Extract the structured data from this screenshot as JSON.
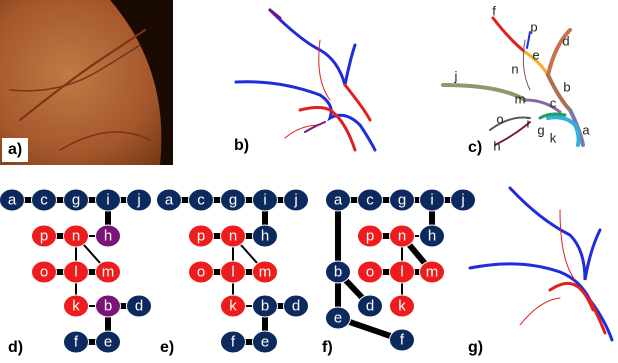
{
  "panels": [
    {
      "label": "a)"
    },
    {
      "label": "b)"
    },
    {
      "label": "c)",
      "segment_labels": [
        "f",
        "p",
        "d",
        "e",
        "n",
        "j",
        "b",
        "m",
        "c",
        "o",
        "i",
        "g",
        "a",
        "k",
        "h"
      ]
    },
    {
      "label": "d)",
      "nodes": [
        {
          "label": "a",
          "color": "#0d2a5e"
        },
        {
          "label": "c",
          "color": "#0d2a5e"
        },
        {
          "label": "g",
          "color": "#0d2a5e"
        },
        {
          "label": "i",
          "color": "#0d2a5e"
        },
        {
          "label": "j",
          "color": "#0d2a5e"
        },
        {
          "label": "p",
          "color": "#ee1c1c"
        },
        {
          "label": "n",
          "color": "#ee1c1c"
        },
        {
          "label": "h",
          "color": "#7a1478"
        },
        {
          "label": "o",
          "color": "#ee1c1c"
        },
        {
          "label": "l",
          "color": "#ee1c1c"
        },
        {
          "label": "m",
          "color": "#ee1c1c"
        },
        {
          "label": "k",
          "color": "#ee1c1c"
        },
        {
          "label": "b",
          "color": "#7a1478"
        },
        {
          "label": "d",
          "color": "#0d2a5e"
        },
        {
          "label": "f",
          "color": "#0d2a5e"
        },
        {
          "label": "e",
          "color": "#0d2a5e"
        }
      ],
      "edges": [
        [
          0,
          1,
          6
        ],
        [
          1,
          2,
          6
        ],
        [
          2,
          3,
          6
        ],
        [
          3,
          4,
          6
        ],
        [
          3,
          7,
          6
        ],
        [
          5,
          6,
          6
        ],
        [
          6,
          7,
          2
        ],
        [
          6,
          9,
          2
        ],
        [
          6,
          10,
          2
        ],
        [
          8,
          9,
          6
        ],
        [
          9,
          10,
          6
        ],
        [
          9,
          11,
          2
        ],
        [
          11,
          12,
          2
        ],
        [
          12,
          13,
          6
        ],
        [
          12,
          15,
          6
        ],
        [
          14,
          15,
          6
        ]
      ]
    },
    {
      "label": "e)",
      "nodes": [
        {
          "label": "a",
          "color": "#0d2a5e"
        },
        {
          "label": "c",
          "color": "#0d2a5e"
        },
        {
          "label": "g",
          "color": "#0d2a5e"
        },
        {
          "label": "i",
          "color": "#0d2a5e"
        },
        {
          "label": "j",
          "color": "#0d2a5e"
        },
        {
          "label": "p",
          "color": "#ee1c1c"
        },
        {
          "label": "n",
          "color": "#ee1c1c"
        },
        {
          "label": "h",
          "color": "#0d2a5e"
        },
        {
          "label": "o",
          "color": "#ee1c1c"
        },
        {
          "label": "l",
          "color": "#ee1c1c"
        },
        {
          "label": "m",
          "color": "#ee1c1c"
        },
        {
          "label": "k",
          "color": "#ee1c1c"
        },
        {
          "label": "b",
          "color": "#0d2a5e"
        },
        {
          "label": "d",
          "color": "#0d2a5e"
        },
        {
          "label": "f",
          "color": "#0d2a5e"
        },
        {
          "label": "e",
          "color": "#0d2a5e"
        }
      ],
      "edges": [
        [
          0,
          1,
          6
        ],
        [
          1,
          2,
          6
        ],
        [
          2,
          3,
          6
        ],
        [
          3,
          4,
          6
        ],
        [
          3,
          7,
          6
        ],
        [
          5,
          6,
          6
        ],
        [
          6,
          7,
          6
        ],
        [
          6,
          9,
          2
        ],
        [
          6,
          10,
          2
        ],
        [
          8,
          9,
          6
        ],
        [
          9,
          10,
          6
        ],
        [
          9,
          11,
          2
        ],
        [
          11,
          12,
          2
        ],
        [
          12,
          13,
          6
        ],
        [
          12,
          15,
          6
        ],
        [
          14,
          15,
          6
        ]
      ]
    },
    {
      "label": "f)",
      "nodes": [
        {
          "label": "a",
          "color": "#0d2a5e"
        },
        {
          "label": "c",
          "color": "#0d2a5e"
        },
        {
          "label": "g",
          "color": "#0d2a5e"
        },
        {
          "label": "i",
          "color": "#0d2a5e"
        },
        {
          "label": "j",
          "color": "#0d2a5e"
        },
        {
          "label": "p",
          "color": "#ee1c1c"
        },
        {
          "label": "n",
          "color": "#ee1c1c"
        },
        {
          "label": "h",
          "color": "#0d2a5e"
        },
        {
          "label": "o",
          "color": "#ee1c1c"
        },
        {
          "label": "l",
          "color": "#ee1c1c"
        },
        {
          "label": "m",
          "color": "#ee1c1c"
        },
        {
          "label": "k",
          "color": "#ee1c1c"
        },
        {
          "label": "b",
          "color": "#0d2a5e"
        },
        {
          "label": "d",
          "color": "#0d2a5e"
        },
        {
          "label": "f",
          "color": "#0d2a5e"
        },
        {
          "label": "e",
          "color": "#0d2a5e"
        }
      ],
      "edges": [
        [
          0,
          1,
          6
        ],
        [
          1,
          2,
          6
        ],
        [
          2,
          3,
          6
        ],
        [
          3,
          4,
          6
        ],
        [
          3,
          7,
          6
        ],
        [
          5,
          6,
          6
        ],
        [
          6,
          7,
          2
        ],
        [
          6,
          9,
          2
        ],
        [
          6,
          10,
          6
        ],
        [
          8,
          9,
          6
        ],
        [
          9,
          10,
          6
        ],
        [
          9,
          11,
          2
        ],
        [
          0,
          12,
          6
        ],
        [
          12,
          13,
          6
        ],
        [
          12,
          15,
          6
        ],
        [
          15,
          14,
          6
        ]
      ]
    },
    {
      "label": "g)"
    }
  ]
}
